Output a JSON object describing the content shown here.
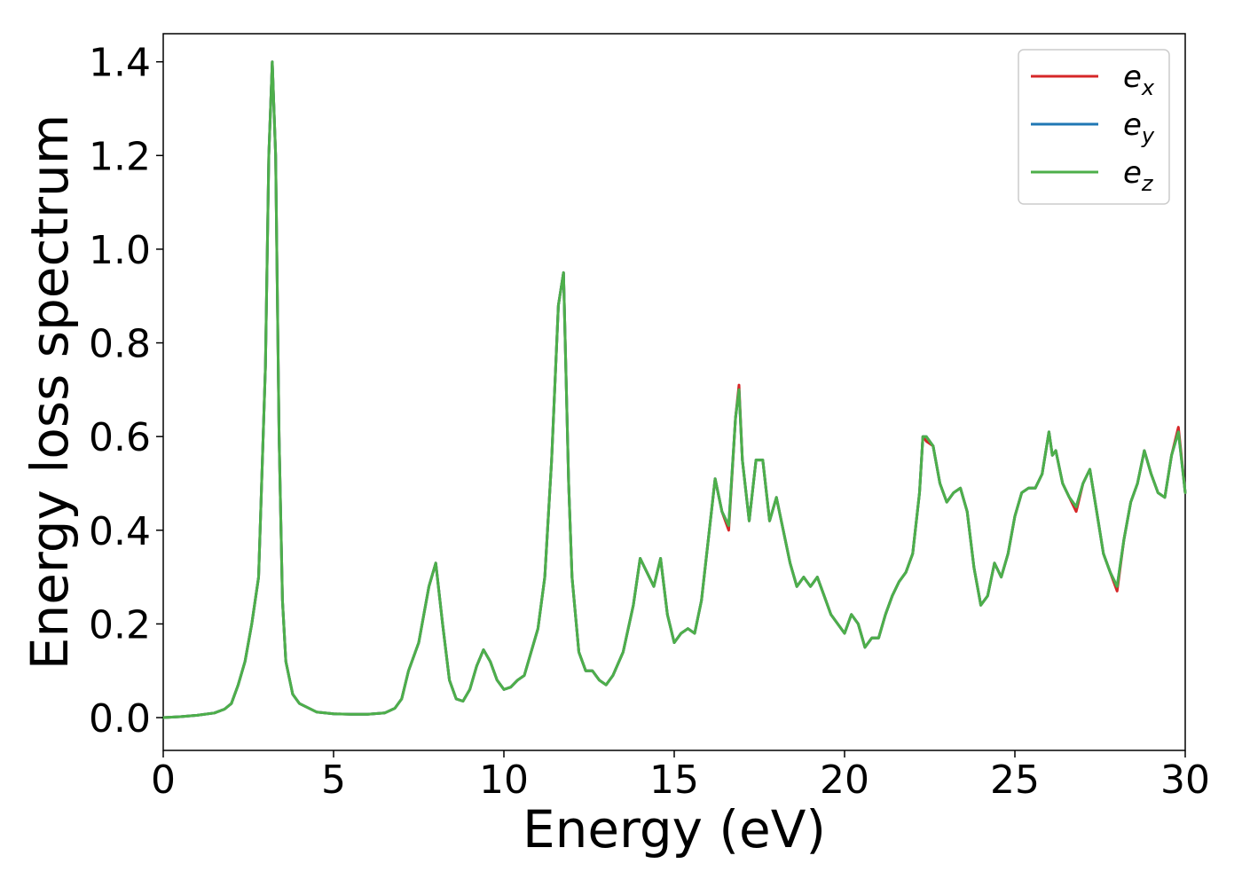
{
  "chart_data": {
    "type": "line",
    "xlabel": "Energy (eV)",
    "ylabel": "Energy loss spectrum",
    "xlim": [
      0,
      30
    ],
    "ylim": [
      -0.07,
      1.46
    ],
    "xticks": [
      0,
      5,
      10,
      15,
      20,
      25,
      30
    ],
    "xtick_labels": [
      "0",
      "5",
      "10",
      "15",
      "20",
      "25",
      "30"
    ],
    "yticks": [
      0.0,
      0.2,
      0.4,
      0.6,
      0.8,
      1.0,
      1.2,
      1.4
    ],
    "ytick_labels": [
      "0.0",
      "0.2",
      "0.4",
      "0.6",
      "0.8",
      "1.0",
      "1.2",
      "1.4"
    ],
    "grid": false,
    "legend_position": "top-right",
    "x": [
      0.0,
      0.5,
      1.0,
      1.5,
      1.8,
      2.0,
      2.2,
      2.4,
      2.6,
      2.8,
      3.0,
      3.1,
      3.2,
      3.3,
      3.4,
      3.5,
      3.6,
      3.8,
      4.0,
      4.5,
      5.0,
      5.5,
      6.0,
      6.5,
      6.8,
      7.0,
      7.2,
      7.5,
      7.8,
      8.0,
      8.2,
      8.4,
      8.6,
      8.8,
      9.0,
      9.2,
      9.4,
      9.6,
      9.8,
      10.0,
      10.2,
      10.4,
      10.6,
      10.8,
      11.0,
      11.2,
      11.4,
      11.6,
      11.75,
      11.9,
      12.0,
      12.2,
      12.4,
      12.6,
      12.8,
      13.0,
      13.2,
      13.5,
      13.8,
      14.0,
      14.2,
      14.4,
      14.6,
      14.8,
      15.0,
      15.2,
      15.4,
      15.6,
      15.8,
      16.0,
      16.2,
      16.4,
      16.6,
      16.8,
      16.9,
      17.0,
      17.2,
      17.4,
      17.6,
      17.8,
      18.0,
      18.2,
      18.4,
      18.6,
      18.8,
      19.0,
      19.2,
      19.4,
      19.6,
      19.8,
      20.0,
      20.2,
      20.4,
      20.6,
      20.8,
      21.0,
      21.2,
      21.4,
      21.6,
      21.8,
      22.0,
      22.2,
      22.3,
      22.4,
      22.6,
      22.8,
      23.0,
      23.2,
      23.4,
      23.6,
      23.8,
      24.0,
      24.2,
      24.4,
      24.6,
      24.8,
      25.0,
      25.2,
      25.4,
      25.6,
      25.8,
      26.0,
      26.1,
      26.2,
      26.4,
      26.6,
      26.8,
      27.0,
      27.2,
      27.4,
      27.6,
      27.8,
      28.0,
      28.2,
      28.4,
      28.6,
      28.8,
      29.0,
      29.2,
      29.4,
      29.6,
      29.8,
      30.0
    ],
    "series": [
      {
        "name": "e_x",
        "color": "#d62728",
        "values": [
          0.0,
          0.002,
          0.005,
          0.01,
          0.018,
          0.03,
          0.07,
          0.12,
          0.2,
          0.3,
          0.75,
          1.2,
          1.4,
          1.2,
          0.6,
          0.25,
          0.12,
          0.05,
          0.03,
          0.012,
          0.008,
          0.007,
          0.007,
          0.01,
          0.02,
          0.04,
          0.1,
          0.16,
          0.28,
          0.33,
          0.2,
          0.08,
          0.04,
          0.035,
          0.06,
          0.11,
          0.145,
          0.12,
          0.08,
          0.06,
          0.065,
          0.08,
          0.09,
          0.14,
          0.19,
          0.3,
          0.55,
          0.88,
          0.95,
          0.5,
          0.3,
          0.14,
          0.1,
          0.1,
          0.08,
          0.07,
          0.09,
          0.14,
          0.24,
          0.34,
          0.31,
          0.28,
          0.34,
          0.22,
          0.16,
          0.18,
          0.19,
          0.18,
          0.25,
          0.38,
          0.51,
          0.44,
          0.4,
          0.64,
          0.71,
          0.55,
          0.42,
          0.55,
          0.55,
          0.42,
          0.47,
          0.4,
          0.33,
          0.28,
          0.3,
          0.28,
          0.3,
          0.26,
          0.22,
          0.2,
          0.18,
          0.22,
          0.2,
          0.15,
          0.17,
          0.17,
          0.22,
          0.26,
          0.29,
          0.31,
          0.35,
          0.48,
          0.6,
          0.59,
          0.58,
          0.5,
          0.46,
          0.48,
          0.49,
          0.44,
          0.32,
          0.24,
          0.26,
          0.33,
          0.3,
          0.35,
          0.43,
          0.48,
          0.49,
          0.49,
          0.52,
          0.61,
          0.56,
          0.57,
          0.5,
          0.47,
          0.44,
          0.5,
          0.53,
          0.44,
          0.35,
          0.31,
          0.27,
          0.38,
          0.46,
          0.5,
          0.57,
          0.52,
          0.48,
          0.47,
          0.56,
          0.62,
          0.48
        ]
      },
      {
        "name": "e_y",
        "color": "#1f77b4",
        "values": [
          0.0,
          0.002,
          0.005,
          0.01,
          0.018,
          0.03,
          0.07,
          0.12,
          0.2,
          0.3,
          0.75,
          1.2,
          1.4,
          1.2,
          0.6,
          0.25,
          0.12,
          0.05,
          0.03,
          0.012,
          0.008,
          0.007,
          0.007,
          0.01,
          0.02,
          0.04,
          0.1,
          0.16,
          0.28,
          0.33,
          0.2,
          0.08,
          0.04,
          0.035,
          0.06,
          0.11,
          0.145,
          0.12,
          0.08,
          0.06,
          0.065,
          0.08,
          0.09,
          0.14,
          0.19,
          0.3,
          0.55,
          0.88,
          0.95,
          0.5,
          0.3,
          0.14,
          0.1,
          0.1,
          0.08,
          0.07,
          0.09,
          0.14,
          0.24,
          0.34,
          0.31,
          0.28,
          0.34,
          0.22,
          0.16,
          0.18,
          0.19,
          0.18,
          0.25,
          0.38,
          0.51,
          0.44,
          0.41,
          0.64,
          0.7,
          0.55,
          0.42,
          0.55,
          0.55,
          0.42,
          0.47,
          0.4,
          0.33,
          0.28,
          0.3,
          0.28,
          0.3,
          0.26,
          0.22,
          0.2,
          0.18,
          0.22,
          0.2,
          0.15,
          0.17,
          0.17,
          0.22,
          0.26,
          0.29,
          0.31,
          0.35,
          0.48,
          0.6,
          0.6,
          0.58,
          0.5,
          0.46,
          0.48,
          0.49,
          0.44,
          0.32,
          0.24,
          0.26,
          0.33,
          0.3,
          0.35,
          0.43,
          0.48,
          0.49,
          0.49,
          0.52,
          0.61,
          0.56,
          0.57,
          0.5,
          0.47,
          0.45,
          0.5,
          0.53,
          0.44,
          0.35,
          0.31,
          0.28,
          0.38,
          0.46,
          0.5,
          0.57,
          0.52,
          0.48,
          0.47,
          0.56,
          0.61,
          0.48
        ]
      },
      {
        "name": "e_z",
        "color": "#4daf4a",
        "values": [
          0.0,
          0.002,
          0.005,
          0.01,
          0.018,
          0.03,
          0.07,
          0.12,
          0.2,
          0.3,
          0.75,
          1.2,
          1.4,
          1.2,
          0.6,
          0.25,
          0.12,
          0.05,
          0.03,
          0.012,
          0.008,
          0.007,
          0.007,
          0.01,
          0.02,
          0.04,
          0.1,
          0.16,
          0.28,
          0.33,
          0.2,
          0.08,
          0.04,
          0.035,
          0.06,
          0.11,
          0.145,
          0.12,
          0.08,
          0.06,
          0.065,
          0.08,
          0.09,
          0.14,
          0.19,
          0.3,
          0.55,
          0.88,
          0.95,
          0.5,
          0.3,
          0.14,
          0.1,
          0.1,
          0.08,
          0.07,
          0.09,
          0.14,
          0.24,
          0.34,
          0.31,
          0.28,
          0.34,
          0.22,
          0.16,
          0.18,
          0.19,
          0.18,
          0.25,
          0.38,
          0.51,
          0.44,
          0.41,
          0.64,
          0.7,
          0.55,
          0.42,
          0.55,
          0.55,
          0.42,
          0.47,
          0.4,
          0.33,
          0.28,
          0.3,
          0.28,
          0.3,
          0.26,
          0.22,
          0.2,
          0.18,
          0.22,
          0.2,
          0.15,
          0.17,
          0.17,
          0.22,
          0.26,
          0.29,
          0.31,
          0.35,
          0.48,
          0.6,
          0.6,
          0.58,
          0.5,
          0.46,
          0.48,
          0.49,
          0.44,
          0.32,
          0.24,
          0.26,
          0.33,
          0.3,
          0.35,
          0.43,
          0.48,
          0.49,
          0.49,
          0.52,
          0.61,
          0.56,
          0.57,
          0.5,
          0.47,
          0.45,
          0.5,
          0.53,
          0.44,
          0.35,
          0.31,
          0.28,
          0.38,
          0.46,
          0.5,
          0.57,
          0.52,
          0.48,
          0.47,
          0.56,
          0.61,
          0.48
        ]
      }
    ],
    "legend": [
      {
        "base": "e",
        "sub": "x",
        "color": "#d62728"
      },
      {
        "base": "e",
        "sub": "y",
        "color": "#1f77b4"
      },
      {
        "base": "e",
        "sub": "z",
        "color": "#4daf4a"
      }
    ]
  }
}
